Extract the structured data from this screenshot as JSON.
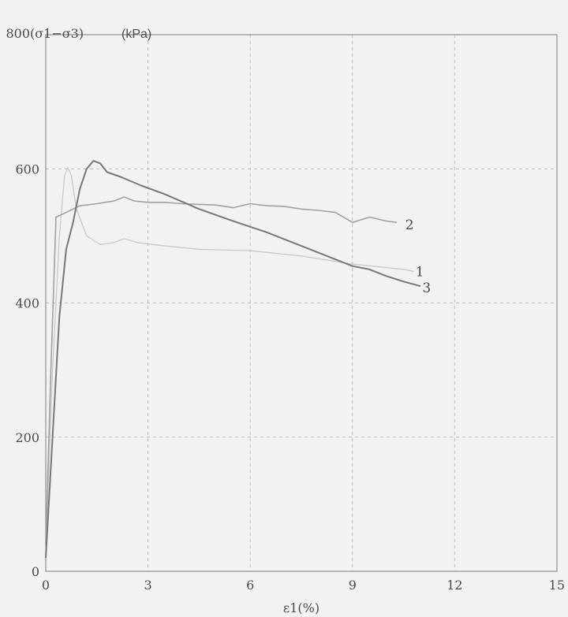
{
  "chart_data": {
    "type": "line",
    "ylabel": "(σ1−σ3)",
    "yunit": "(kPa)",
    "xlabel": "ε1(%)",
    "xlim": [
      0,
      15
    ],
    "ylim": [
      0,
      800
    ],
    "xticks": [
      0,
      3,
      6,
      9,
      12,
      15
    ],
    "yticks": [
      0,
      200,
      400,
      600,
      800
    ],
    "grid": true,
    "series": [
      {
        "name": "1",
        "color": "#c4c8c8",
        "width": 1.2,
        "x": [
          0,
          0.2,
          0.4,
          0.55,
          0.65,
          0.75,
          0.9,
          1.2,
          1.6,
          2.0,
          2.3,
          2.7,
          3.5,
          4.5,
          6.0,
          7.5,
          9.0,
          10.5,
          10.8
        ],
        "y": [
          30,
          300,
          500,
          590,
          602,
          590,
          540,
          500,
          487,
          490,
          496,
          490,
          485,
          480,
          478,
          470,
          458,
          450,
          447
        ]
      },
      {
        "name": "2",
        "color": "#9da2a2",
        "width": 1.6,
        "x": [
          0,
          0.15,
          0.3,
          0.6,
          1.0,
          1.5,
          2.0,
          2.3,
          2.6,
          3.0,
          3.5,
          4.0,
          4.5,
          5.0,
          5.5,
          6.0,
          6.5,
          7.0,
          7.5,
          8.0,
          8.5,
          9.0,
          9.5,
          10.0,
          10.3
        ],
        "y": [
          40,
          300,
          528,
          535,
          545,
          548,
          552,
          558,
          552,
          550,
          550,
          548,
          547,
          546,
          542,
          548,
          545,
          544,
          540,
          538,
          535,
          520,
          528,
          522,
          520
        ]
      },
      {
        "name": "3",
        "color": "#737878",
        "width": 2,
        "x": [
          0,
          0.2,
          0.4,
          0.6,
          0.8,
          1.0,
          1.2,
          1.4,
          1.6,
          1.8,
          2.2,
          2.8,
          3.5,
          4.5,
          5.5,
          6.5,
          7.5,
          8.5,
          9.0,
          9.5,
          10.0,
          10.5,
          11.0
        ],
        "y": [
          20,
          200,
          380,
          480,
          520,
          570,
          600,
          612,
          608,
          595,
          588,
          575,
          562,
          540,
          522,
          505,
          485,
          465,
          455,
          450,
          440,
          432,
          425
        ]
      }
    ],
    "series_label_positions": [
      {
        "name": "1",
        "x": 10.85,
        "y": 447
      },
      {
        "name": "2",
        "x": 10.55,
        "y": 517
      },
      {
        "name": "3",
        "x": 11.05,
        "y": 423
      }
    ]
  }
}
